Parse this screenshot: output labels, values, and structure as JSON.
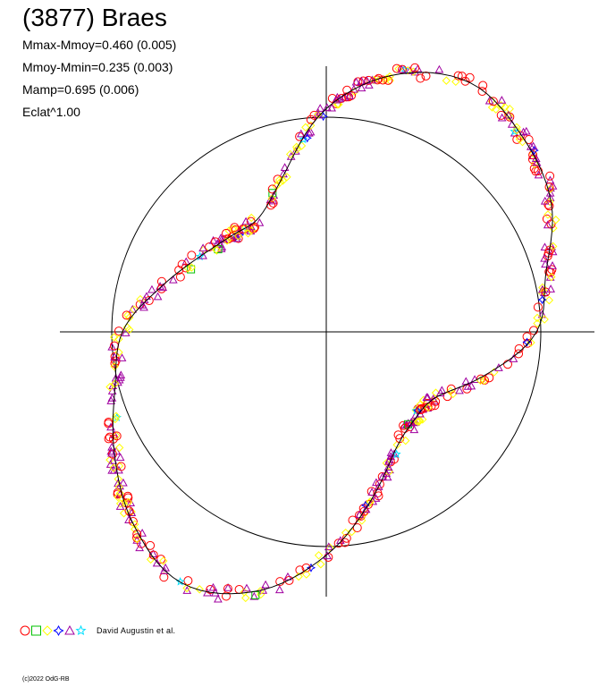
{
  "chart_data": {
    "type": "scatter",
    "title": "(3877) Braes",
    "stats": [
      "Mmax-Mmoy=0.460 (0.005)",
      "Mmoy-Mmin=0.235 (0.003)",
      "Mamp=0.695 (0.006)",
      "Eclat^1.00"
    ],
    "reference_circle_radius": 1.0,
    "grid": false,
    "legend_placement": "bottom-left",
    "legend": {
      "text": "David Augustin et al.",
      "markers": [
        {
          "shape": "circle",
          "color": "#ff0000"
        },
        {
          "shape": "square",
          "color": "#00c000"
        },
        {
          "shape": "diamond",
          "color": "#ffff00"
        },
        {
          "shape": "star4",
          "color": "#0000ff"
        },
        {
          "shape": "triangle",
          "color": "#a000a0"
        },
        {
          "shape": "star5",
          "color": "#00e0ff"
        }
      ]
    },
    "curve_polar": {
      "angle_deg": [
        0,
        15,
        30,
        45,
        60,
        75,
        90,
        105,
        120,
        135,
        150,
        165,
        180,
        195,
        210,
        225,
        240,
        255,
        270,
        285,
        300,
        315,
        330,
        345,
        360
      ],
      "radius": [
        0.98,
        1.06,
        1.21,
        1.29,
        1.34,
        1.24,
        1.04,
        0.76,
        0.62,
        0.63,
        0.69,
        0.8,
        0.95,
        1.02,
        1.14,
        1.27,
        1.35,
        1.25,
        1.04,
        0.81,
        0.64,
        0.58,
        0.6,
        0.77,
        0.98
      ]
    }
  },
  "footer": {
    "copyright": "(c)2022 OdG-RB"
  }
}
